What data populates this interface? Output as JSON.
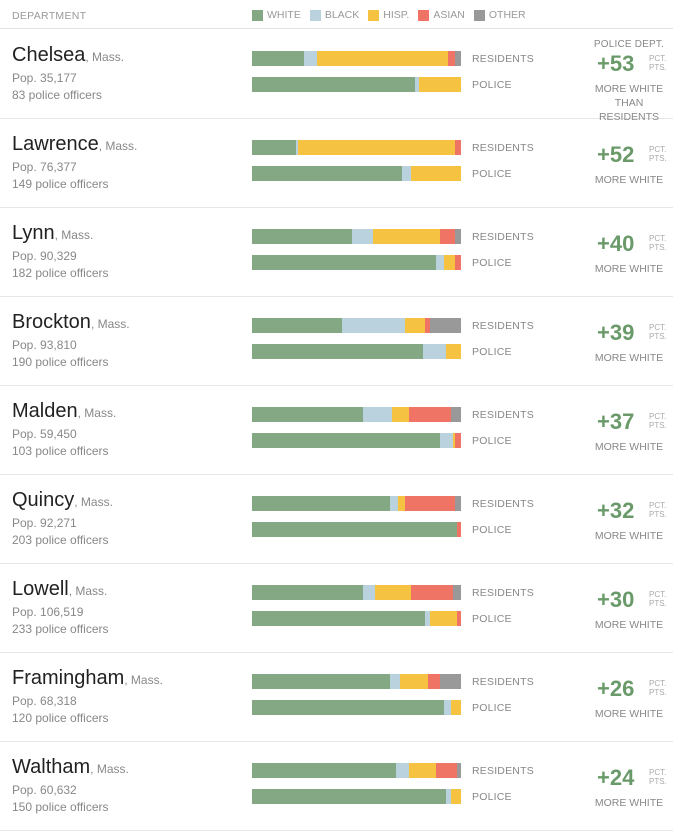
{
  "header": {
    "department_label": "DEPARTMENT",
    "legend": [
      {
        "label": "WHITE",
        "color": "#83a883"
      },
      {
        "label": "BLACK",
        "color": "#b9d2dd"
      },
      {
        "label": "HISP.",
        "color": "#f5c242"
      },
      {
        "label": "ASIAN",
        "color": "#ef7466"
      },
      {
        "label": "OTHER",
        "color": "#999999"
      }
    ]
  },
  "labels": {
    "residents": "RESIDENTS",
    "police": "POLICE",
    "police_dept": "POLICE DEPT.",
    "unit_line1": "PCT.",
    "unit_line2": "PTS.",
    "more_white": "MORE WHITE",
    "than_residents": "THAN RESIDENTS"
  },
  "chart_data": {
    "type": "bar",
    "orientation": "horizontal-stacked",
    "value_unit": "percent",
    "categories": [
      "WHITE",
      "BLACK",
      "HISP.",
      "ASIAN",
      "OTHER"
    ],
    "rows": [
      {
        "city": "Chelsea",
        "state": ", Mass.",
        "pop": "Pop. 35,177",
        "officers": "83 police officers",
        "diff": "+53",
        "residents": [
          25,
          6,
          63,
          3,
          3
        ],
        "police": [
          78,
          2,
          20,
          0,
          0
        ]
      },
      {
        "city": "Lawrence",
        "state": ", Mass.",
        "pop": "Pop. 76,377",
        "officers": "149 police officers",
        "diff": "+52",
        "residents": [
          21,
          1,
          75,
          3,
          0
        ],
        "police": [
          72,
          4,
          24,
          0,
          0
        ]
      },
      {
        "city": "Lynn",
        "state": ", Mass.",
        "pop": "Pop. 90,329",
        "officers": "182 police officers",
        "diff": "+40",
        "residents": [
          48,
          10,
          32,
          7,
          3
        ],
        "police": [
          88,
          4,
          5,
          3,
          0
        ]
      },
      {
        "city": "Brockton",
        "state": ", Mass.",
        "pop": "Pop. 93,810",
        "officers": "190 police officers",
        "diff": "+39",
        "residents": [
          43,
          30,
          10,
          2,
          15
        ],
        "police": [
          82,
          11,
          7,
          0,
          0
        ]
      },
      {
        "city": "Malden",
        "state": ", Mass.",
        "pop": "Pop. 59,450",
        "officers": "103 police officers",
        "diff": "+37",
        "residents": [
          53,
          14,
          8,
          20,
          5
        ],
        "police": [
          90,
          6,
          1,
          3,
          0
        ]
      },
      {
        "city": "Quincy",
        "state": ", Mass.",
        "pop": "Pop. 92,271",
        "officers": "203 police officers",
        "diff": "+32",
        "residents": [
          66,
          4,
          3,
          24,
          3
        ],
        "police": [
          98,
          0,
          0,
          2,
          0
        ]
      },
      {
        "city": "Lowell",
        "state": ", Mass.",
        "pop": "Pop. 106,519",
        "officers": "233 police officers",
        "diff": "+30",
        "residents": [
          53,
          6,
          17,
          20,
          4
        ],
        "police": [
          83,
          2,
          13,
          2,
          0
        ]
      },
      {
        "city": "Framingham",
        "state": ", Mass.",
        "pop": "Pop. 68,318",
        "officers": "120 police officers",
        "diff": "+26",
        "residents": [
          66,
          5,
          13,
          6,
          10
        ],
        "police": [
          92,
          3,
          5,
          0,
          0
        ]
      },
      {
        "city": "Waltham",
        "state": ", Mass.",
        "pop": "Pop. 60,632",
        "officers": "150 police officers",
        "diff": "+24",
        "residents": [
          69,
          6,
          13,
          10,
          2
        ],
        "police": [
          93,
          2,
          5,
          0,
          0
        ]
      }
    ]
  }
}
